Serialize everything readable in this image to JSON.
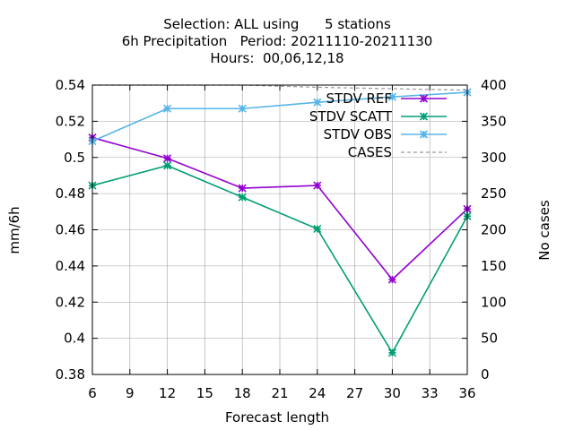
{
  "title_lines": [
    "Selection: ALL using      5 stations",
    "6h Precipitation   Period: 20211110-20211130",
    "Hours:  00,06,12,18"
  ],
  "chart_data": {
    "type": "line",
    "title": "Selection: ALL using 5 stations / 6h Precipitation Period: 20211110-20211130 / Hours: 00,06,12,18",
    "xlabel": "Forecast length",
    "ylabel": "mm/6h",
    "y2label": "No cases",
    "x": [
      6,
      12,
      18,
      24,
      30,
      36
    ],
    "xlim": [
      6,
      36
    ],
    "xticks": [
      6,
      9,
      12,
      15,
      18,
      21,
      24,
      27,
      30,
      33,
      36
    ],
    "ylim": [
      0.38,
      0.54
    ],
    "yticks": [
      0.38,
      0.4,
      0.42,
      0.44,
      0.46,
      0.48,
      0.5,
      0.52,
      0.54
    ],
    "y2lim": [
      0,
      400
    ],
    "y2ticks": [
      0,
      50,
      100,
      150,
      200,
      250,
      300,
      350,
      400
    ],
    "grid": true,
    "legend_position": "top-right",
    "series": [
      {
        "name": "STDV REF",
        "axis": "y1",
        "color": "#9400d3",
        "marker": "star",
        "values": [
          0.511,
          0.4995,
          0.483,
          0.4845,
          0.4325,
          0.4715
        ]
      },
      {
        "name": "STDV SCATT",
        "axis": "y1",
        "color": "#009e73",
        "marker": "star",
        "values": [
          0.4845,
          0.4955,
          0.478,
          0.4605,
          0.392,
          0.4675
        ]
      },
      {
        "name": "STDV OBS",
        "axis": "y1",
        "color": "#56b4e9",
        "marker": "star",
        "values": [
          0.509,
          0.527,
          0.527,
          0.5305,
          0.5335,
          0.536
        ]
      },
      {
        "name": "CASES",
        "axis": "y2",
        "color": "#999999",
        "dashed": true,
        "values": [
          400,
          400,
          400,
          397,
          395,
          393
        ]
      }
    ]
  }
}
